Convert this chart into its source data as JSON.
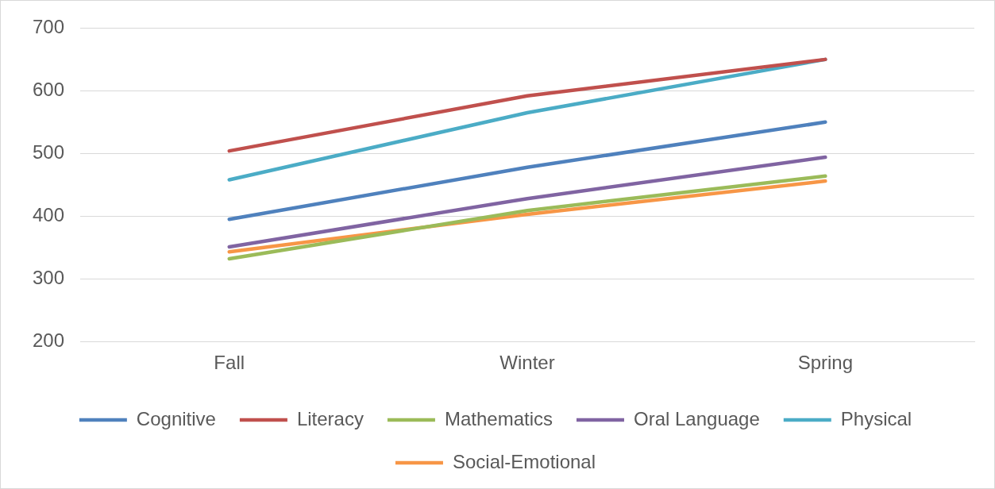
{
  "chart_data": {
    "type": "line",
    "categories": [
      "Fall",
      "Winter",
      "Spring"
    ],
    "series": [
      {
        "name": "Cognitive",
        "color": "#4f81bd",
        "values": [
          395,
          478,
          550
        ]
      },
      {
        "name": "Literacy",
        "color": "#c0504d",
        "values": [
          504,
          592,
          650
        ]
      },
      {
        "name": "Mathematics",
        "color": "#9bbb59",
        "values": [
          332,
          409,
          464
        ]
      },
      {
        "name": "Oral Language",
        "color": "#8064a2",
        "values": [
          351,
          428,
          494
        ]
      },
      {
        "name": "Physical",
        "color": "#4bacc6",
        "values": [
          458,
          565,
          650
        ]
      },
      {
        "name": "Social-Emotional",
        "color": "#f79646",
        "values": [
          343,
          403,
          456
        ]
      }
    ],
    "ylim": [
      200,
      700
    ],
    "yticks": [
      200,
      300,
      400,
      500,
      600,
      700
    ],
    "grid": "y",
    "legend": "bottom",
    "marker": "none",
    "line_style": "solid"
  }
}
